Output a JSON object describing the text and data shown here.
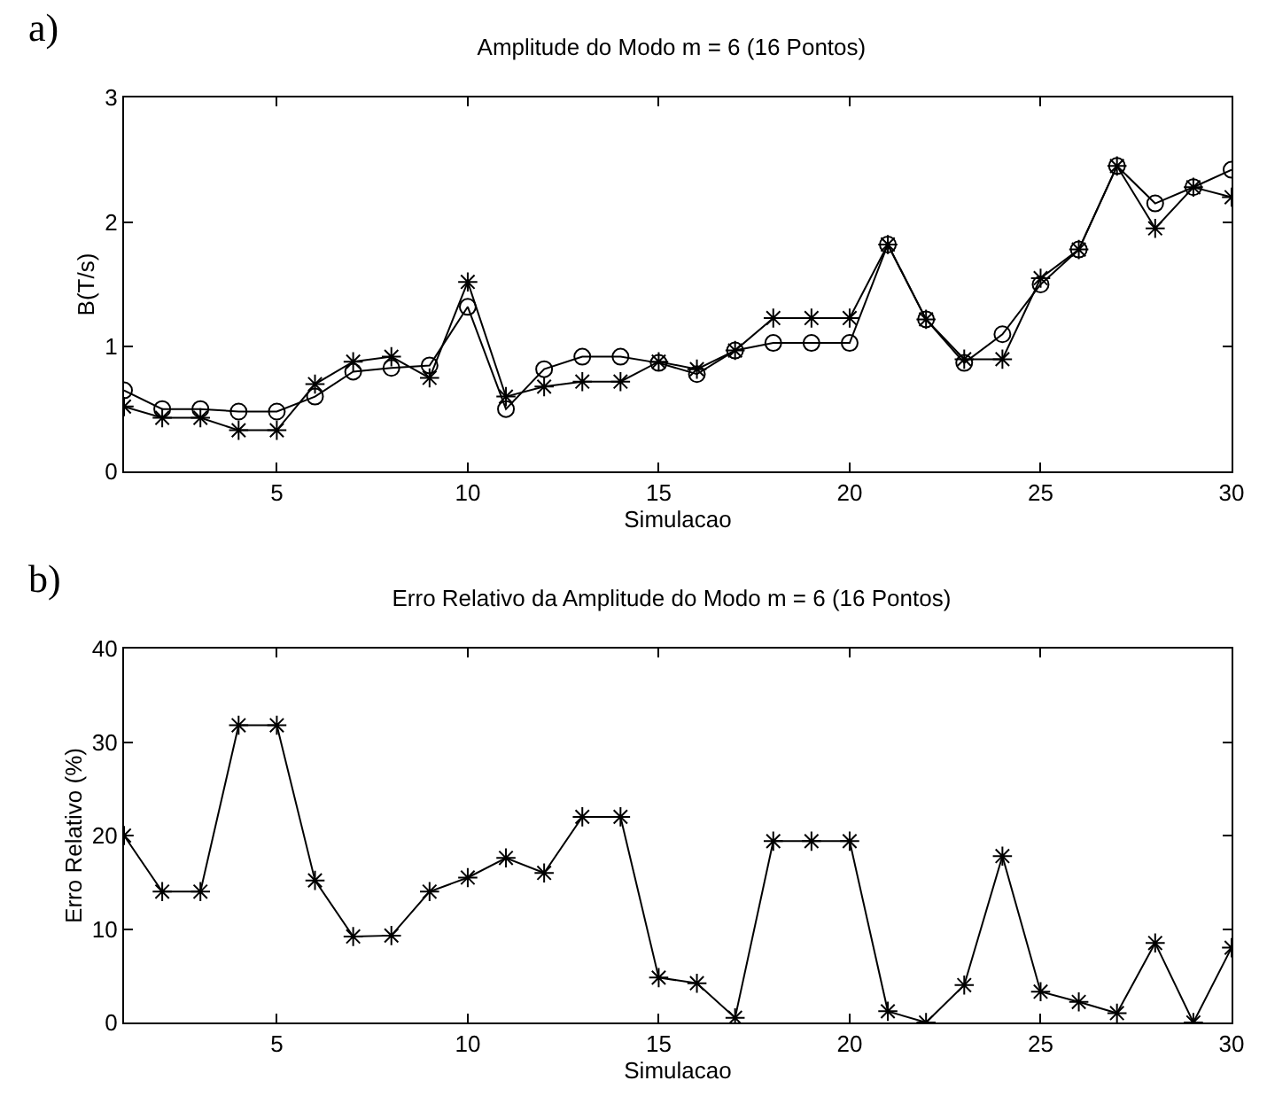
{
  "chart_data": [
    {
      "type": "line",
      "title": "Amplitude do Modo m = 6 (16 Pontos)",
      "xlabel": "Simulacao",
      "ylabel": "B(T/s)",
      "annotations": [
        "a)"
      ],
      "x": [
        1,
        2,
        3,
        4,
        5,
        6,
        7,
        8,
        9,
        10,
        11,
        12,
        13,
        14,
        15,
        16,
        17,
        18,
        19,
        20,
        21,
        22,
        23,
        24,
        25,
        26,
        27,
        28,
        29,
        30
      ],
      "xlim": [
        1,
        30
      ],
      "xticks": [
        5,
        10,
        15,
        20,
        25,
        30
      ],
      "ylim": [
        0,
        3
      ],
      "yticks": [
        0,
        1,
        2,
        3
      ],
      "grid": false,
      "line_style": "solid",
      "series": [
        {
          "color": "#000000",
          "marker": "circle",
          "values": [
            0.65,
            0.5,
            0.5,
            0.48,
            0.48,
            0.6,
            0.8,
            0.83,
            0.85,
            1.32,
            0.5,
            0.82,
            0.92,
            0.92,
            0.87,
            0.78,
            0.97,
            1.03,
            1.03,
            1.03,
            1.82,
            1.22,
            0.87,
            1.1,
            1.5,
            1.78,
            2.45,
            2.15,
            2.28,
            2.42
          ]
        },
        {
          "color": "#000000",
          "marker": "cross",
          "values": [
            0.52,
            0.43,
            0.43,
            0.33,
            0.33,
            0.7,
            0.88,
            0.92,
            0.75,
            1.52,
            0.6,
            0.68,
            0.72,
            0.72,
            0.88,
            0.82,
            0.97,
            1.23,
            1.23,
            1.23,
            1.82,
            1.22,
            0.9,
            0.9,
            1.55,
            1.78,
            2.45,
            1.95,
            2.28,
            2.2
          ]
        }
      ]
    },
    {
      "type": "line",
      "title": "Erro Relativo da Amplitude do Modo m = 6 (16 Pontos)",
      "xlabel": "Simulacao",
      "ylabel": "Erro Relativo (%)",
      "annotations": [
        "b)"
      ],
      "x": [
        1,
        2,
        3,
        4,
        5,
        6,
        7,
        8,
        9,
        10,
        11,
        12,
        13,
        14,
        15,
        16,
        17,
        18,
        19,
        20,
        21,
        22,
        23,
        24,
        25,
        26,
        27,
        28,
        29,
        30
      ],
      "xlim": [
        1,
        30
      ],
      "xticks": [
        5,
        10,
        15,
        20,
        25,
        30
      ],
      "ylim": [
        0,
        40
      ],
      "yticks": [
        0,
        10,
        20,
        30,
        40
      ],
      "grid": false,
      "line_style": "solid",
      "marker": "cross",
      "series": [
        {
          "color": "#000000",
          "values": [
            20,
            14,
            14,
            31.8,
            31.8,
            15.2,
            9.2,
            9.3,
            14,
            15.5,
            17.6,
            16,
            22,
            22,
            4.8,
            4.2,
            0.5,
            19.4,
            19.4,
            19.4,
            1.2,
            0,
            4,
            17.8,
            3.3,
            2.2,
            1,
            8.5,
            0,
            8
          ]
        }
      ]
    }
  ]
}
